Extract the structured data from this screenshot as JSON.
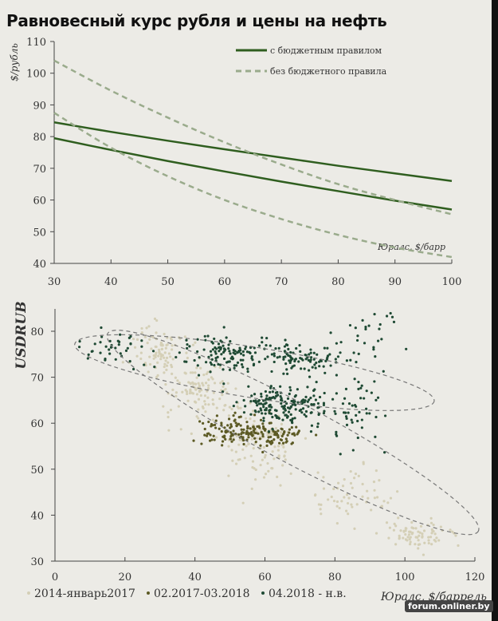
{
  "title": "Равновесный курс рубля и цены на нефть",
  "watermark": "forum.onliner.by",
  "chart_data": [
    {
      "type": "line",
      "ylabel": "$/рубль",
      "xlabel": "Юралс, $/барр",
      "xlim": [
        30,
        100
      ],
      "ylim": [
        40,
        110
      ],
      "xticks": [
        "30",
        "40",
        "50",
        "60",
        "70",
        "80",
        "90",
        "100"
      ],
      "yticks": [
        "40",
        "50",
        "60",
        "70",
        "80",
        "90",
        "100",
        "110"
      ],
      "legend_position": "top-right",
      "colors": {
        "solid": "#2f5e1f",
        "dashed": "#9aab8c"
      },
      "x": [
        30,
        40,
        50,
        60,
        70,
        80,
        90,
        100
      ],
      "series": [
        {
          "name": "с бюджетным правилом",
          "style": "solid",
          "values": [
            84.5,
            81.5,
            78.7,
            76,
            73.4,
            70.8,
            68.4,
            66
          ]
        },
        {
          "name": "с бюджетным правилом",
          "style": "solid",
          "show_in_legend": false,
          "values": [
            79.5,
            75.8,
            72.3,
            69,
            65.8,
            62.8,
            59.8,
            57
          ]
        },
        {
          "name": "без бюджетного правила",
          "style": "dashed",
          "values": [
            104,
            94.5,
            86,
            78.2,
            71.2,
            65,
            60,
            55.5
          ]
        },
        {
          "name": "без бюджетного правила",
          "style": "dashed",
          "show_in_legend": false,
          "values": [
            87.5,
            76.5,
            67.5,
            60,
            54,
            49,
            45,
            42
          ]
        }
      ]
    },
    {
      "type": "scatter",
      "ylabel": "USDRUB",
      "xlabel": "Юралс, $/баррель",
      "xlim": [
        0,
        120
      ],
      "ylim": [
        30,
        85
      ],
      "xticks": [
        "0",
        "20",
        "40",
        "60",
        "80",
        "100",
        "120"
      ],
      "yticks": [
        "30",
        "40",
        "50",
        "60",
        "70",
        "80"
      ],
      "legend_position": "bottom",
      "series": [
        {
          "name": "2014-январь2017",
          "color": "#d4cfb6",
          "clusters": [
            {
              "cx": 30,
              "cy": 76,
              "sx": 4,
              "sy": 3,
              "n": 90
            },
            {
              "cx": 42,
              "cy": 67,
              "sx": 5,
              "sy": 3,
              "n": 110
            },
            {
              "cx": 58,
              "cy": 55,
              "sx": 5,
              "sy": 4,
              "n": 110
            },
            {
              "cx": 85,
              "cy": 44,
              "sx": 6,
              "sy": 3,
              "n": 60
            },
            {
              "cx": 103,
              "cy": 36,
              "sx": 5,
              "sy": 1.5,
              "n": 80
            }
          ]
        },
        {
          "name": "02.2017-03.2018",
          "color": "#5c5a24",
          "clusters": [
            {
              "cx": 52,
              "cy": 58.5,
              "sx": 5,
              "sy": 1.5,
              "n": 140
            },
            {
              "cx": 65,
              "cy": 57.5,
              "sx": 3,
              "sy": 1.2,
              "n": 50
            }
          ]
        },
        {
          "name": "04.2018 - н.в.",
          "color": "#1f4a34",
          "clusters": [
            {
              "cx": 48,
              "cy": 75,
              "sx": 6,
              "sy": 2,
              "n": 110
            },
            {
              "cx": 70,
              "cy": 74,
              "sx": 7,
              "sy": 1.8,
              "n": 100
            },
            {
              "cx": 65,
              "cy": 64,
              "sx": 6,
              "sy": 2,
              "n": 170
            },
            {
              "cx": 85,
              "cy": 62,
              "sx": 7,
              "sy": 4,
              "n": 60
            },
            {
              "cx": 18,
              "cy": 76,
              "sx": 5,
              "sy": 2,
              "n": 40
            },
            {
              "cx": 90,
              "cy": 80,
              "sx": 5,
              "sy": 3,
              "n": 30
            }
          ]
        }
      ],
      "ellipses": [
        {
          "cx": 57,
          "cy": 71,
          "rx": 52,
          "ry": 5.5,
          "angle_deg": 9
        },
        {
          "cx": 68,
          "cy": 58,
          "rx": 60,
          "ry": 6.5,
          "angle_deg": 28
        }
      ]
    }
  ]
}
